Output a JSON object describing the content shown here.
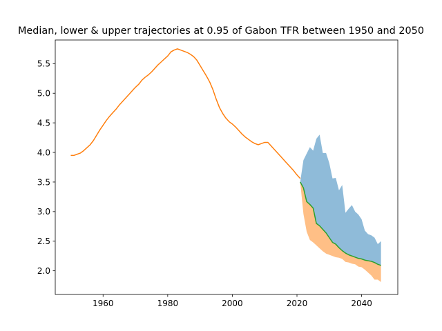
{
  "chart_data": {
    "type": "area",
    "title": "Median, lower & upper trajectories at 0.95 of Gabon TFR between 1950 and 2050",
    "xlabel": "",
    "ylabel": "",
    "xlim": [
      1945.2,
      2051.2
    ],
    "ylim": [
      1.6,
      5.9
    ],
    "x_ticks": [
      1960,
      1980,
      2000,
      2020,
      2040
    ],
    "y_ticks": [
      2.0,
      2.5,
      3.0,
      3.5,
      4.0,
      4.5,
      5.0,
      5.5
    ],
    "grid": false,
    "legend": "none",
    "colors": {
      "upper": "#1f77b4",
      "lower": "#ff7f0e",
      "median": "#2ca02c",
      "historical": "#ff7f0e"
    },
    "historical": {
      "x": [
        1950,
        1951,
        1952,
        1953,
        1954,
        1955,
        1956,
        1957,
        1958,
        1959,
        1960,
        1961,
        1962,
        1963,
        1964,
        1965,
        1966,
        1967,
        1968,
        1969,
        1970,
        1971,
        1972,
        1973,
        1974,
        1975,
        1976,
        1977,
        1978,
        1979,
        1980,
        1981,
        1982,
        1983,
        1984,
        1985,
        1986,
        1987,
        1988,
        1989,
        1990,
        1991,
        1992,
        1993,
        1994,
        1995,
        1996,
        1997,
        1998,
        1999,
        2000,
        2001,
        2002,
        2003,
        2004,
        2005,
        2006,
        2007,
        2008,
        2009,
        2010,
        2011,
        2012,
        2013,
        2014,
        2015,
        2016,
        2017,
        2018,
        2019,
        2020,
        2021
      ],
      "y": [
        3.95,
        3.95,
        3.97,
        3.99,
        4.03,
        4.08,
        4.13,
        4.2,
        4.29,
        4.38,
        4.46,
        4.54,
        4.61,
        4.67,
        4.73,
        4.8,
        4.86,
        4.92,
        4.98,
        5.04,
        5.1,
        5.15,
        5.22,
        5.27,
        5.31,
        5.36,
        5.42,
        5.48,
        5.53,
        5.58,
        5.63,
        5.7,
        5.73,
        5.75,
        5.73,
        5.71,
        5.69,
        5.66,
        5.62,
        5.56,
        5.47,
        5.38,
        5.29,
        5.19,
        5.06,
        4.9,
        4.76,
        4.66,
        4.58,
        4.52,
        4.48,
        4.43,
        4.37,
        4.31,
        4.26,
        4.22,
        4.18,
        4.15,
        4.13,
        4.15,
        4.17,
        4.17,
        4.11,
        4.05,
        3.99,
        3.93,
        3.87,
        3.81,
        3.75,
        3.69,
        3.62,
        3.56
      ]
    },
    "median": {
      "x": [
        2021,
        2022,
        2023,
        2024,
        2025,
        2026,
        2027,
        2028,
        2029,
        2030,
        2031,
        2032,
        2033,
        2034,
        2035,
        2036,
        2037,
        2038,
        2039,
        2040,
        2041,
        2042,
        2043,
        2044,
        2045,
        2046
      ],
      "y": [
        3.5,
        3.4,
        3.17,
        3.12,
        3.06,
        2.8,
        2.76,
        2.7,
        2.64,
        2.56,
        2.48,
        2.45,
        2.39,
        2.34,
        2.3,
        2.27,
        2.25,
        2.23,
        2.21,
        2.2,
        2.18,
        2.17,
        2.16,
        2.14,
        2.11,
        2.09
      ]
    },
    "upper": {
      "x": [
        2021,
        2022,
        2023,
        2024,
        2025,
        2026,
        2027,
        2028,
        2029,
        2030,
        2031,
        2032,
        2033,
        2034,
        2035,
        2036,
        2037,
        2038,
        2039,
        2040,
        2041,
        2042,
        2043,
        2044,
        2045,
        2046
      ],
      "y": [
        3.5,
        3.87,
        3.98,
        4.09,
        4.03,
        4.23,
        4.3,
        3.99,
        3.99,
        3.82,
        3.56,
        3.57,
        3.36,
        3.45,
        2.98,
        3.05,
        3.11,
        3.0,
        2.95,
        2.87,
        2.68,
        2.62,
        2.6,
        2.56,
        2.45,
        2.5
      ]
    },
    "lower": {
      "x": [
        2021,
        2022,
        2023,
        2024,
        2025,
        2026,
        2027,
        2028,
        2029,
        2030,
        2031,
        2032,
        2033,
        2034,
        2035,
        2036,
        2037,
        2038,
        2039,
        2040,
        2041,
        2042,
        2043,
        2044,
        2045,
        2046
      ],
      "y": [
        3.5,
        2.96,
        2.66,
        2.52,
        2.48,
        2.43,
        2.38,
        2.33,
        2.29,
        2.27,
        2.25,
        2.23,
        2.22,
        2.2,
        2.15,
        2.14,
        2.12,
        2.11,
        2.07,
        2.06,
        2.02,
        1.97,
        1.92,
        1.85,
        1.85,
        1.81
      ]
    }
  }
}
